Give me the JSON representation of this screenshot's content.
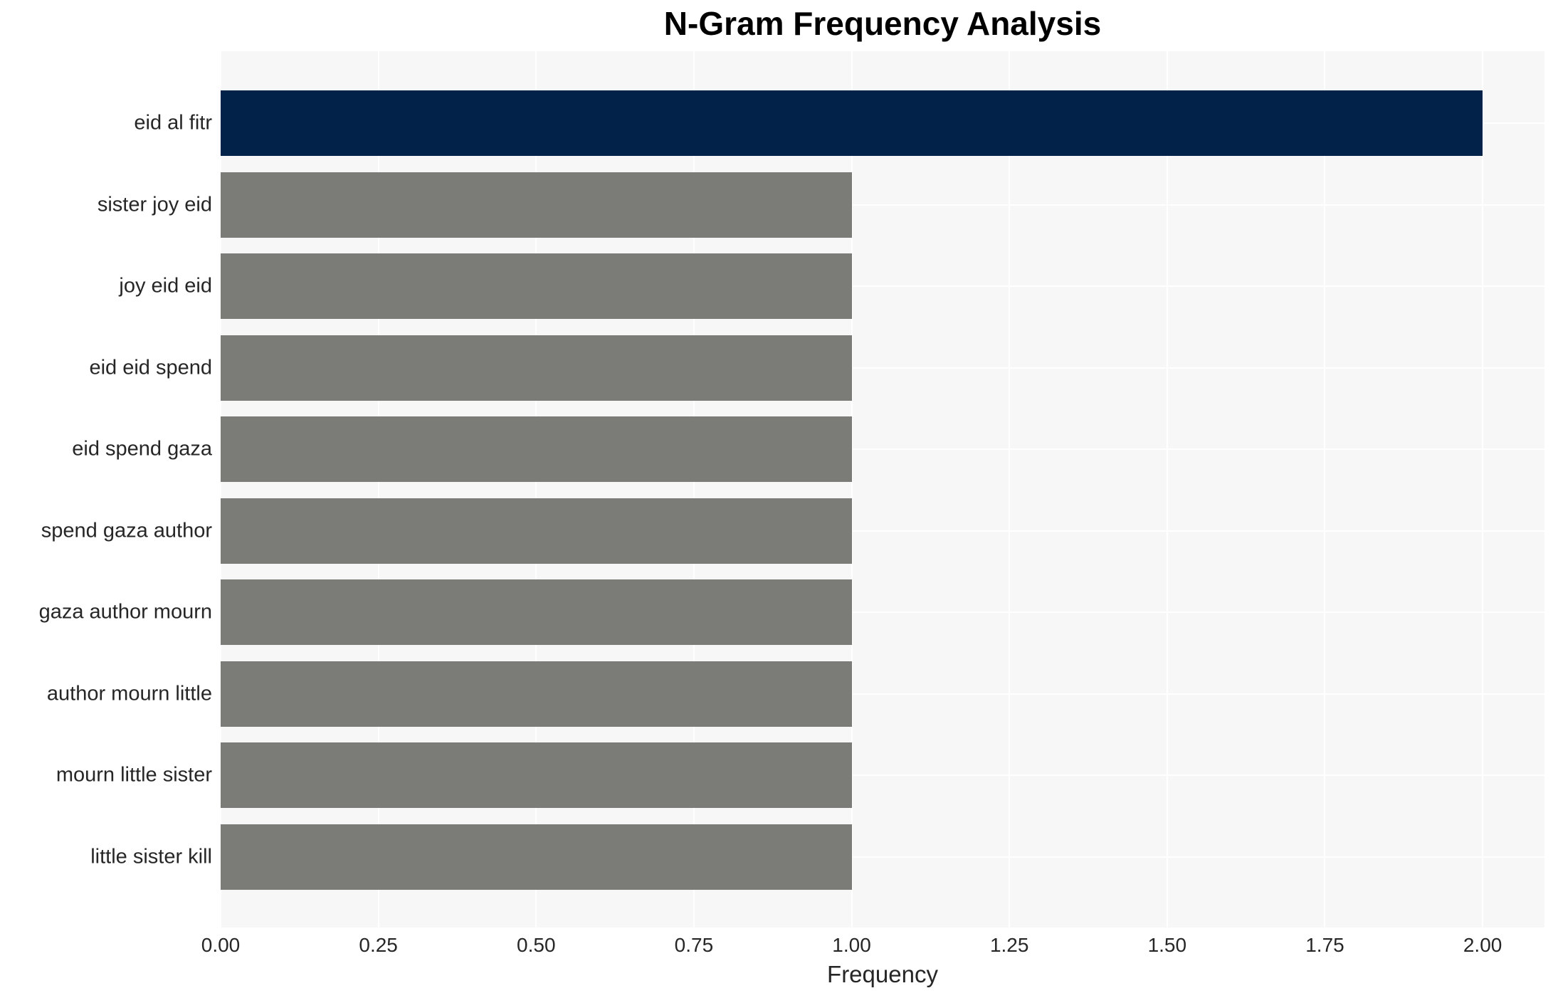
{
  "figure": {
    "title": "N-Gram Frequency Analysis"
  },
  "chart_data": {
    "type": "bar",
    "orientation": "horizontal",
    "title": "N-Gram Frequency Analysis",
    "xlabel": "Frequency",
    "ylabel": "",
    "categories": [
      "eid al fitr",
      "sister joy eid",
      "joy eid eid",
      "eid eid spend",
      "eid spend gaza",
      "spend gaza author",
      "gaza author mourn",
      "author mourn little",
      "mourn little sister",
      "little sister kill"
    ],
    "values": [
      2,
      1,
      1,
      1,
      1,
      1,
      1,
      1,
      1,
      1
    ],
    "xlim": [
      0,
      2.098
    ],
    "xticks": [
      0,
      0.25,
      0.5,
      0.75,
      1.0,
      1.25,
      1.5,
      1.75,
      2.0
    ],
    "xtick_labels": [
      "0.00",
      "0.25",
      "0.50",
      "0.75",
      "1.00",
      "1.25",
      "1.50",
      "1.75",
      "2.00"
    ],
    "grid": true,
    "legend_position": "none",
    "bar_colors": [
      "#032249",
      "#7b7b77",
      "#7b7b77",
      "#7b7b77",
      "#7b7b77",
      "#7b7b77",
      "#7b7b77",
      "#7b7b77",
      "#7b7b77",
      "#7b7b77"
    ],
    "colors": {
      "highlight_bar": "#032249",
      "default_bar": "#7b7b77",
      "plot_background": "#f7f7f7",
      "gridline": "#ffffff",
      "tick_text": "#262626",
      "title_text": "#000000"
    }
  }
}
